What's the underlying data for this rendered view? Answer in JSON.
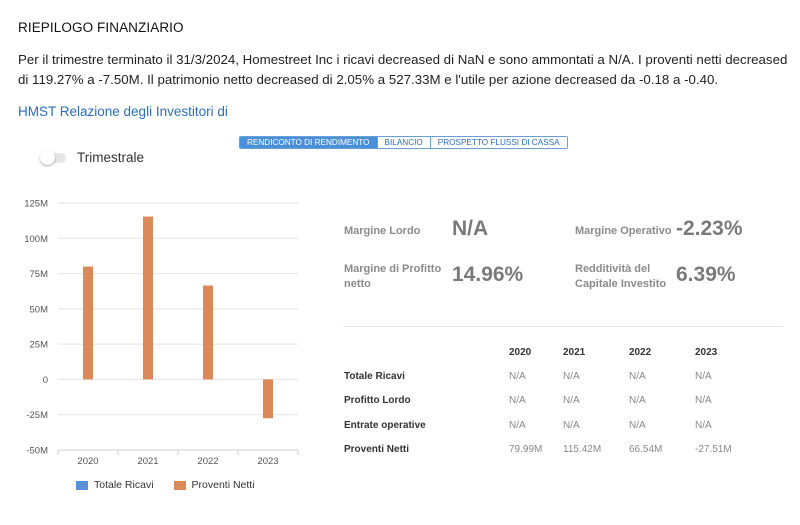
{
  "page": {
    "heading": "RIEPILOGO FINANZIARIO",
    "summary": "Per il trimestre terminato il 31/3/2024, Homestreet Inc i ricavi decreased di NaN e sono ammontati a N/A. I proventi netti decreased di 119.27% a -7.50M. Il patrimonio netto decreased di 2.05% a 527.33M e l'utile per azione decreased da -0.18 a -0.40.",
    "investor_link": "HMST Relazione degli Investitori di"
  },
  "tabs": [
    {
      "label": "RENDICONTO DI RENDIMENTO",
      "active": true
    },
    {
      "label": "BILANCIO",
      "active": false
    },
    {
      "label": "PROSPETTO FLUSSI DI CASSA",
      "active": false
    }
  ],
  "toggle": {
    "label": "Trimestrale",
    "on": false
  },
  "metrics": {
    "gross_margin": {
      "label": "Margine Lordo",
      "value": "N/A"
    },
    "operating_margin": {
      "label": "Margine Operativo",
      "value": "-2.23%"
    },
    "net_profit_margin": {
      "label": "Margine di Profitto netto",
      "value": "14.96%"
    },
    "roic": {
      "label": "Redditività del Capitale Investito",
      "value": "6.39%"
    }
  },
  "table": {
    "years": [
      "2020",
      "2021",
      "2022",
      "2023"
    ],
    "rows": [
      {
        "label": "Totale Ricavi",
        "values": [
          "N/A",
          "N/A",
          "N/A",
          "N/A"
        ]
      },
      {
        "label": "Profitto Lordo",
        "values": [
          "N/A",
          "N/A",
          "N/A",
          "N/A"
        ]
      },
      {
        "label": "Entrate operative",
        "values": [
          "N/A",
          "N/A",
          "N/A",
          "N/A"
        ]
      },
      {
        "label": "Proventi Netti",
        "values": [
          "79.99M",
          "115.42M",
          "66.54M",
          "-27.51M"
        ]
      }
    ]
  },
  "colors": {
    "accent": "#4a90d9",
    "series_total_revenue": "#5b8fd6",
    "series_net_income": "#d9895a"
  },
  "chart_data": {
    "type": "bar",
    "categories": [
      "2020",
      "2021",
      "2022",
      "2023"
    ],
    "series": [
      {
        "name": "Totale Ricavi",
        "values": [
          null,
          null,
          null,
          null
        ]
      },
      {
        "name": "Proventi Netti",
        "values": [
          79.99,
          115.42,
          66.54,
          -27.51
        ]
      }
    ],
    "y_unit": "M",
    "ylim": [
      -50,
      125
    ],
    "yticks": [
      125,
      100,
      75,
      50,
      25,
      0,
      -25,
      -50
    ],
    "ytick_labels": [
      "125M",
      "100M",
      "75M",
      "50M",
      "25M",
      "0",
      "-25M",
      "-50M"
    ],
    "grid": true,
    "legend": "bottom"
  }
}
